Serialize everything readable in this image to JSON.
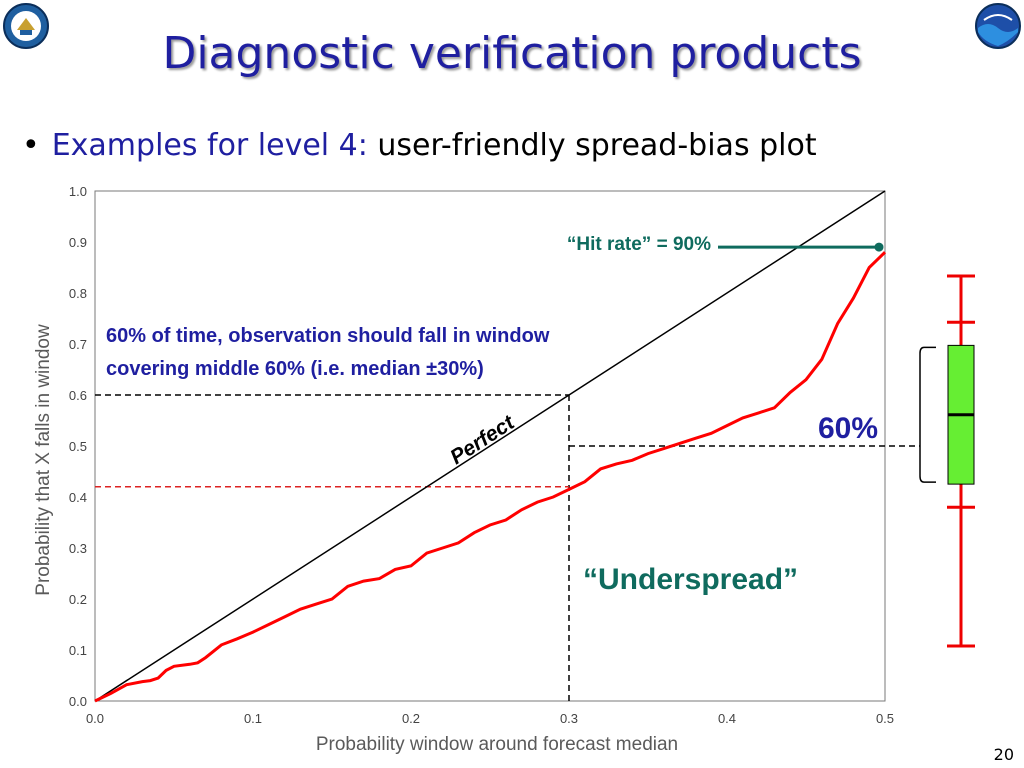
{
  "slide": {
    "title": "Diagnostic verification products",
    "bullet_lead": "Examples for level 4:",
    "bullet_rest": " user-friendly spread-bias plot",
    "page_number": "20"
  },
  "chart_data": {
    "type": "line",
    "title": "",
    "xlabel": "Probability window around forecast median",
    "ylabel": "Probability that X falls in window",
    "xlim": [
      0.0,
      0.5
    ],
    "ylim": [
      0.0,
      1.0
    ],
    "xticks": [
      "0.0",
      "0.1",
      "0.2",
      "0.3",
      "0.4",
      "0.5"
    ],
    "yticks": [
      "0.0",
      "0.1",
      "0.2",
      "0.3",
      "0.4",
      "0.5",
      "0.6",
      "0.7",
      "0.8",
      "0.9",
      "1.0"
    ],
    "grid": false,
    "series": [
      {
        "name": "Perfect",
        "color": "#000000",
        "x": [
          0.0,
          0.5
        ],
        "y": [
          0.0,
          1.0
        ]
      },
      {
        "name": "",
        "color": "#ff0000",
        "x": [
          0.0,
          0.01,
          0.02,
          0.03,
          0.035,
          0.04,
          0.045,
          0.05,
          0.06,
          0.065,
          0.07,
          0.08,
          0.09,
          0.1,
          0.11,
          0.12,
          0.13,
          0.14,
          0.15,
          0.16,
          0.17,
          0.18,
          0.19,
          0.2,
          0.21,
          0.22,
          0.23,
          0.24,
          0.25,
          0.26,
          0.27,
          0.28,
          0.29,
          0.3,
          0.31,
          0.32,
          0.33,
          0.34,
          0.35,
          0.36,
          0.37,
          0.38,
          0.39,
          0.4,
          0.41,
          0.42,
          0.43,
          0.44,
          0.45,
          0.46,
          0.47,
          0.48,
          0.49,
          0.5
        ],
        "y": [
          0.0,
          0.015,
          0.032,
          0.038,
          0.04,
          0.045,
          0.06,
          0.068,
          0.072,
          0.075,
          0.085,
          0.11,
          0.122,
          0.135,
          0.15,
          0.165,
          0.18,
          0.19,
          0.2,
          0.225,
          0.235,
          0.24,
          0.258,
          0.265,
          0.29,
          0.3,
          0.31,
          0.33,
          0.345,
          0.355,
          0.375,
          0.39,
          0.4,
          0.415,
          0.43,
          0.455,
          0.465,
          0.472,
          0.485,
          0.495,
          0.505,
          0.515,
          0.525,
          0.54,
          0.555,
          0.565,
          0.575,
          0.605,
          0.63,
          0.67,
          0.74,
          0.79,
          0.85,
          0.88
        ]
      }
    ],
    "reference_lines": {
      "black_horizontal_y": 0.6,
      "black_vertical_x": 0.3,
      "red_horizontal_y": 0.42,
      "median_horizontal_y": 0.5,
      "hit_rate_y": 0.89
    },
    "annotations": {
      "hit_rate": "“Hit rate” = 90%",
      "window_line1": "60% of time, observation should fall in window",
      "window_line2": "covering middle 60% (i.e. median ±30%)",
      "perfect": "Perfect",
      "sixty": "60%",
      "underspread": "“Underspread”"
    },
    "box_plot": {
      "whisker_min": 0.0,
      "low_tick": 0.3,
      "q1": 0.35,
      "median": 0.5,
      "q3": 0.65,
      "high_tick": 0.7,
      "whisker_max": 0.8,
      "color_box": "#66ee33",
      "color_whisker": "#ee0000"
    },
    "colors": {
      "teal": "#0f6b5e",
      "blue": "#1f1fa0",
      "red": "#ff0000",
      "dashed_red": "#dd2222"
    }
  }
}
